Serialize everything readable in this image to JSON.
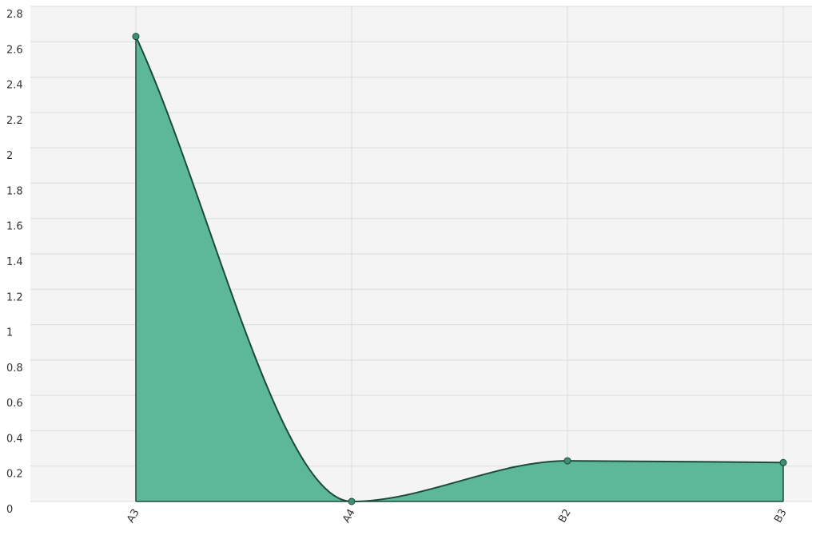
{
  "chart_data": {
    "type": "area",
    "title": "",
    "xlabel": "",
    "ylabel": "",
    "categories": [
      "A3",
      "A4",
      "B2",
      "B3"
    ],
    "series": [
      {
        "values": [
          2.63,
          0.0,
          0.23,
          0.22
        ]
      }
    ],
    "ylim": [
      0,
      2.8
    ],
    "yticks": [
      "0",
      "0.2",
      "0.4",
      "0.6",
      "0.8",
      "1",
      "1.2",
      "1.4",
      "1.6",
      "1.8",
      "2",
      "2.2",
      "2.4",
      "2.6",
      "2.8"
    ],
    "smooth": true,
    "grid": true,
    "legend": "none",
    "colors": {
      "fill": "#5cb899",
      "line": "#1e4a3a",
      "plot_background": "#f4f4f4",
      "grid": "#dcdcdc"
    }
  }
}
